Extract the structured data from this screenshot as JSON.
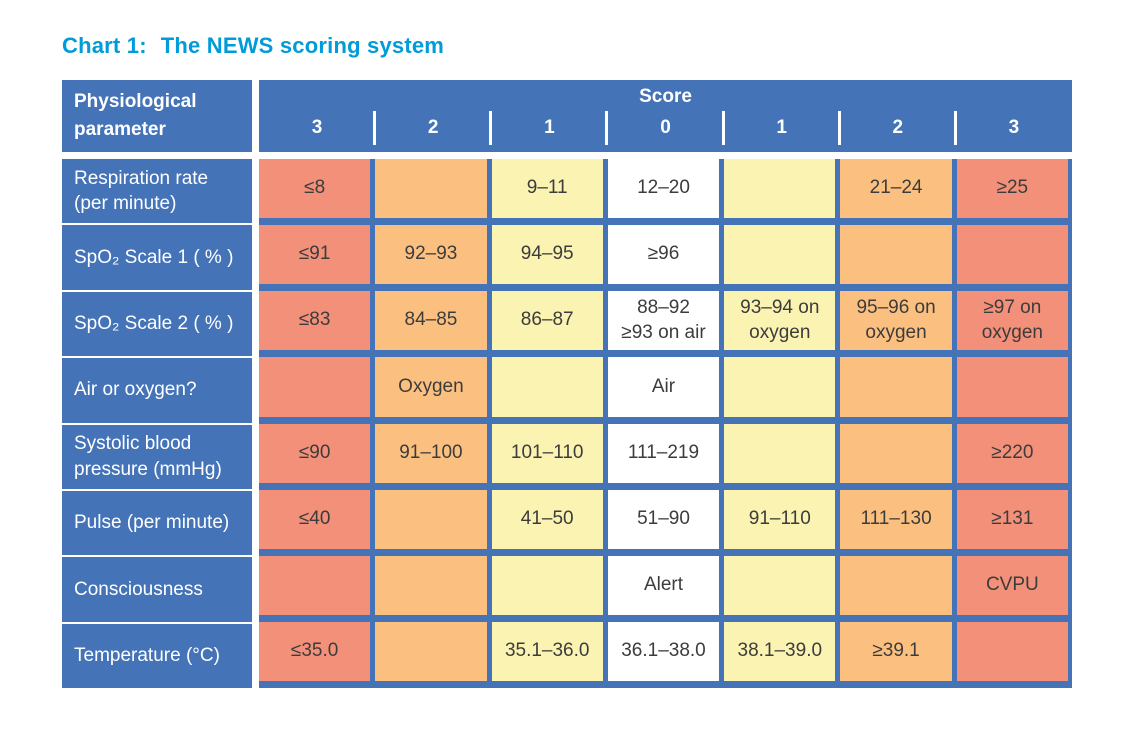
{
  "title": {
    "prefix": "Chart 1:",
    "text": "The NEWS scoring system"
  },
  "colors": {
    "table_blue": "#4473b8",
    "title_blue": "#009bd9",
    "score_3": "#f2907a",
    "score_2": "#fbc080",
    "score_1": "#fbf3b1",
    "score_0": "#ffffff",
    "cell_text": "#3c3c3c",
    "header_text": "#ffffff"
  },
  "chart_data": {
    "type": "table",
    "title": "Chart 1: The NEWS scoring system",
    "corner_header": "Physiological\nparameter",
    "score_group_header": "Score",
    "score_column_labels": [
      "3",
      "2",
      "1",
      "0",
      "1",
      "2",
      "3"
    ],
    "column_score_classes": [
      "score3",
      "score2",
      "score1",
      "score0",
      "score1",
      "score2",
      "score3"
    ],
    "rows": [
      {
        "parameter": "Respiration rate (per minute)",
        "cells": [
          "≤8",
          "",
          "9–11",
          "12–20",
          "",
          "21–24",
          "≥25"
        ]
      },
      {
        "parameter": "SpO₂ Scale 1 ( % )",
        "cells": [
          "≤91",
          "92–93",
          "94–95",
          "≥96",
          "",
          "",
          ""
        ]
      },
      {
        "parameter": "SpO₂ Scale 2 ( % )",
        "cells": [
          "≤83",
          "84–85",
          "86–87",
          "88–92\n≥93 on air",
          "93–94 on\noxygen",
          "95–96 on\noxygen",
          "≥97 on\noxygen"
        ]
      },
      {
        "parameter": "Air or oxygen?",
        "cells": [
          "",
          "Oxygen",
          "",
          "Air",
          "",
          "",
          ""
        ]
      },
      {
        "parameter": "Systolic blood pressure (mmHg)",
        "cells": [
          "≤90",
          "91–100",
          "101–110",
          "111–219",
          "",
          "",
          "≥220"
        ]
      },
      {
        "parameter": "Pulse (per minute)",
        "cells": [
          "≤40",
          "",
          "41–50",
          "51–90",
          "91–110",
          "111–130",
          "≥131"
        ]
      },
      {
        "parameter": "Consciousness",
        "cells": [
          "",
          "",
          "",
          "Alert",
          "",
          "",
          "CVPU"
        ]
      },
      {
        "parameter": "Temperature (°C)",
        "cells": [
          "≤35.0",
          "",
          "35.1–36.0",
          "36.1–38.0",
          "38.1–39.0",
          "≥39.1",
          ""
        ]
      }
    ]
  }
}
